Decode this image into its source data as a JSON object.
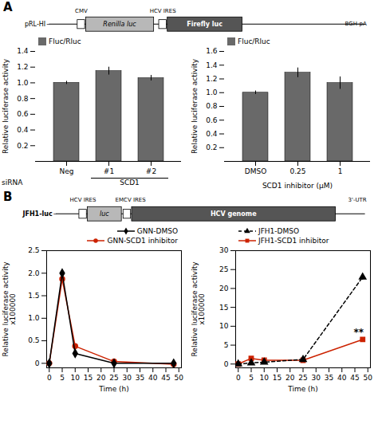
{
  "chart_data": [
    {
      "type": "diagram",
      "annotations": [
        "A",
        "pRL-HI",
        "–",
        "CMV",
        "Renilla luc",
        "HCV IRES",
        "Firefly luc",
        "BGH-pA"
      ],
      "colors": [
        "#b8b8b8",
        "#555555"
      ]
    },
    {
      "type": "bar",
      "categories": [
        "Neg",
        "#1",
        "#2"
      ],
      "series": [
        {
          "name": "Fluc/Rluc",
          "color": "#696969",
          "values": [
            1.0,
            1.15,
            1.06
          ],
          "errors": [
            0.02,
            0.05,
            0.035
          ]
        }
      ],
      "ylabel": "Relative luciferase activity",
      "ylim": [
        0,
        1.4
      ],
      "yticks": [
        0.2,
        0.4,
        0.6,
        0.8,
        {
          "value": 1.0,
          "label": "1.0"
        },
        1.2,
        1.4
      ],
      "legend": "upper left",
      "annotations": [
        "siRNA",
        "SCD1"
      ]
    },
    {
      "type": "bar",
      "categories": [
        "DMSO",
        "0.25",
        "1"
      ],
      "series": [
        {
          "name": "Fluc/Rluc",
          "color": "#696969",
          "values": [
            1.0,
            1.29,
            1.14
          ],
          "errors": [
            0.025,
            0.07,
            0.09
          ]
        }
      ],
      "xlabel": "SCD1 inhibitor (μM)",
      "ylabel": "Relative luciferase activity",
      "ylim": [
        0,
        1.6
      ],
      "yticks": [
        0.2,
        0.4,
        0.6,
        0.8,
        {
          "value": 1.0,
          "label": "1.0"
        },
        1.2,
        1.4,
        1.6
      ],
      "legend": "upper left"
    },
    {
      "type": "diagram",
      "annotations": [
        "B",
        "JFH1-luc",
        "–",
        "HCV IRES",
        "luc",
        "EMCV IRES",
        "HCV genome",
        "3'-UTR"
      ],
      "colors": [
        "#b8b8b8",
        "#555555"
      ]
    },
    {
      "type": "line",
      "x": [
        0,
        5,
        10,
        25,
        48
      ],
      "series": [
        {
          "name": "GNN-DMSO",
          "color": "#000000",
          "marker": "diamond",
          "line_style": "solid",
          "values": [
            0.0,
            2.0,
            0.22,
            0.0,
            0.0
          ],
          "errors": [
            0.02,
            0.07,
            0.03,
            0.01,
            0.01
          ]
        },
        {
          "name": "GNN-SCD1 inhibitor",
          "color": "#cc2200",
          "marker": "circle",
          "line_style": "solid",
          "values": [
            0.0,
            1.87,
            0.38,
            0.04,
            -0.02
          ],
          "errors": [
            0.02,
            0.06,
            0.03,
            0.01,
            0.01
          ]
        }
      ],
      "xlabel": "Time (h)",
      "ylabel": "Relative luciferase activity\nx100000",
      "xlim": [
        -1,
        51
      ],
      "xticks": [
        0,
        5,
        10,
        15,
        20,
        25,
        30,
        35,
        40,
        45,
        50
      ],
      "ylim": [
        -0.1,
        2.5
      ],
      "yticks": [
        0,
        0.5,
        {
          "value": 1.0,
          "label": "1.0"
        },
        1.5,
        {
          "value": 2.0,
          "label": "2.0"
        },
        2.5
      ],
      "legend": "upper right"
    },
    {
      "type": "line",
      "x": [
        0,
        5,
        10,
        25,
        48
      ],
      "series": [
        {
          "name": "JFH1-DMSO",
          "color": "#000000",
          "marker": "triangle",
          "line_style": "dashed",
          "values": [
            0.0,
            0.3,
            0.5,
            1.2,
            23.0
          ],
          "errors": [
            0.05,
            0.1,
            0.1,
            0.15,
            0.8
          ]
        },
        {
          "name": "JFH1-SCD1 inhibitor",
          "color": "#cc2200",
          "marker": "square",
          "line_style": "solid",
          "values": [
            0.0,
            1.5,
            1.0,
            1.0,
            6.5
          ],
          "errors": [
            0.05,
            0.15,
            0.1,
            0.1,
            0.3
          ]
        }
      ],
      "xlabel": "Time (h)",
      "ylabel": "Relative luciferase activity\nx100000",
      "xlim": [
        -1,
        51
      ],
      "xticks": [
        0,
        5,
        10,
        15,
        20,
        25,
        30,
        35,
        40,
        45,
        50
      ],
      "ylim": [
        -1,
        30
      ],
      "yticks": [
        0,
        5,
        10,
        15,
        20,
        25,
        30
      ],
      "legend": "upper left",
      "annotations": [
        {
          "text": "**",
          "x": 46.5,
          "y": 7.5
        }
      ]
    }
  ]
}
